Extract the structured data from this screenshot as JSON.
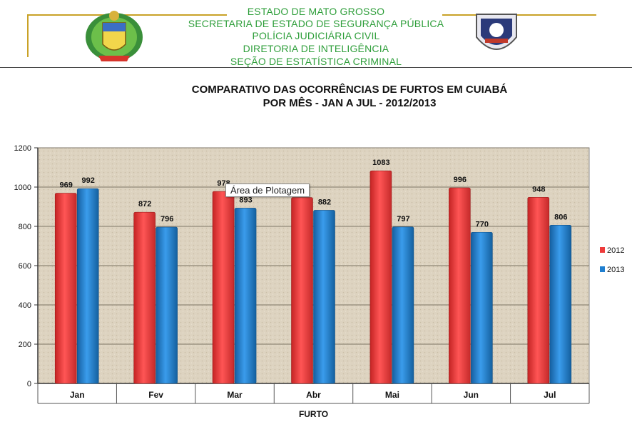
{
  "header": {
    "lines": [
      "ESTADO  DE MATO  GROSSO",
      "SECRETARIA  DE ESTADO  DE SEGURANÇA  PÚBLICA",
      "POLÍCIA JUDICIÁRIA  CIVIL",
      "DIRETORIA  DE INTELIGÊNCIA",
      "SEÇÃO  DE ESTATÍSTICA  CRIMINAL"
    ],
    "text_color": "#2e9e3a",
    "rule_color": "#c9a227"
  },
  "tooltip": "Área de Plotagem",
  "chart_data": {
    "type": "bar",
    "title": "COMPARATIVO  DAS OCORRÊNCIAS  DE FURTOS EM CUIABÁ",
    "subtitle": "POR MÊS - JAN A JUL - 2012/2013",
    "categories": [
      "Jan",
      "Fev",
      "Mar",
      "Abr",
      "Mai",
      "Jun",
      "Jul"
    ],
    "series": [
      {
        "name": "2012",
        "color": "#ee3b3b",
        "values": [
          969,
          872,
          978,
          947,
          1083,
          996,
          948
        ]
      },
      {
        "name": "2013",
        "color": "#1f7fd0",
        "values": [
          992,
          796,
          893,
          882,
          797,
          770,
          806
        ]
      }
    ],
    "ylim": [
      0,
      1200
    ],
    "yticks": [
      "0",
      "200",
      "400",
      "600",
      "800",
      "1000",
      "1200"
    ],
    "xlabel": "FURTO",
    "ylabel": "",
    "grid": true,
    "legend": "right",
    "plot_background": "#ddd3c0"
  }
}
